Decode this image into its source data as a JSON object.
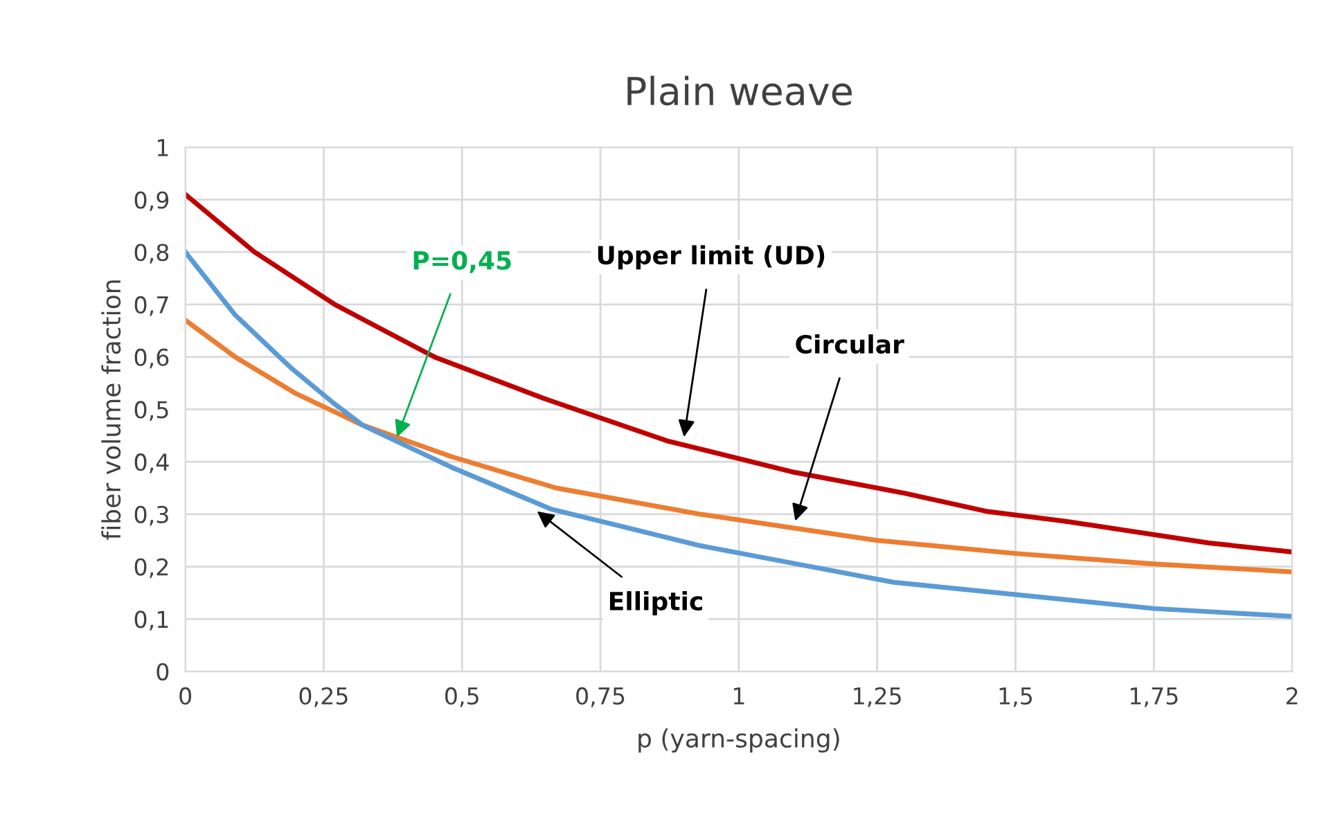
{
  "chart_data": {
    "type": "line",
    "title": "Plain weave",
    "xlabel": "p (yarn-spacing)",
    "ylabel": "fiber volume fraction",
    "series": [
      {
        "color": "#c00000",
        "x": [
          0,
          0.125,
          0.27,
          0.45,
          0.65,
          0.87,
          1.1,
          1.3,
          1.45,
          1.6,
          1.85,
          2
        ],
        "values": [
          0.91,
          0.8,
          0.7,
          0.6,
          0.52,
          0.44,
          0.38,
          0.34,
          0.305,
          0.285,
          0.245,
          0.228
        ]
      },
      {
        "color": "#ed7d31",
        "x": [
          0,
          0.09,
          0.2,
          0.32,
          0.48,
          0.67,
          0.93,
          1.25,
          1.5,
          1.75,
          2
        ],
        "values": [
          0.67,
          0.6,
          0.53,
          0.47,
          0.41,
          0.35,
          0.3,
          0.25,
          0.225,
          0.205,
          0.19
        ]
      },
      {
        "color": "#5b9bd5",
        "x": [
          0,
          0.09,
          0.19,
          0.27,
          0.32,
          0.38,
          0.48,
          0.66,
          0.93,
          1.28,
          1.75,
          2
        ],
        "values": [
          0.8,
          0.68,
          0.58,
          0.51,
          0.47,
          0.44,
          0.39,
          0.31,
          0.24,
          0.17,
          0.12,
          0.105
        ]
      }
    ],
    "annotations": [
      {
        "text": "Upper limit (UD)",
        "x": 0.9,
        "y": 0.44
      },
      {
        "text": "Circular",
        "x": 1.1,
        "y": 0.28
      },
      {
        "text": "Elliptic",
        "x": 0.63,
        "y": 0.31
      },
      {
        "text": "P=0,45",
        "x": 0.38,
        "y": 0.44
      }
    ],
    "xlim": [
      0,
      2
    ],
    "ylim": [
      0,
      1
    ],
    "xticks": [
      0,
      {
        "value": 0.25,
        "label": "0,25"
      },
      {
        "value": 0.5,
        "label": "0,5"
      },
      {
        "value": 0.75,
        "label": "0,75"
      },
      1,
      {
        "value": 1.25,
        "label": "1,25"
      },
      {
        "value": 1.5,
        "label": "1,5"
      },
      {
        "value": 1.75,
        "label": "1,75"
      },
      2
    ],
    "yticks": [
      0,
      {
        "value": 0.1,
        "label": "0,1"
      },
      {
        "value": 0.2,
        "label": "0,2"
      },
      {
        "value": 0.3,
        "label": "0,3"
      },
      {
        "value": 0.4,
        "label": "0,4"
      },
      {
        "value": 0.5,
        "label": "0,5"
      },
      {
        "value": 0.6,
        "label": "0,6"
      },
      {
        "value": 0.7,
        "label": "0,7"
      },
      {
        "value": 0.8,
        "label": "0,8"
      },
      {
        "value": 0.9,
        "label": "0,9"
      },
      1
    ],
    "grid": true,
    "line_style": "solid",
    "marker": "none"
  }
}
